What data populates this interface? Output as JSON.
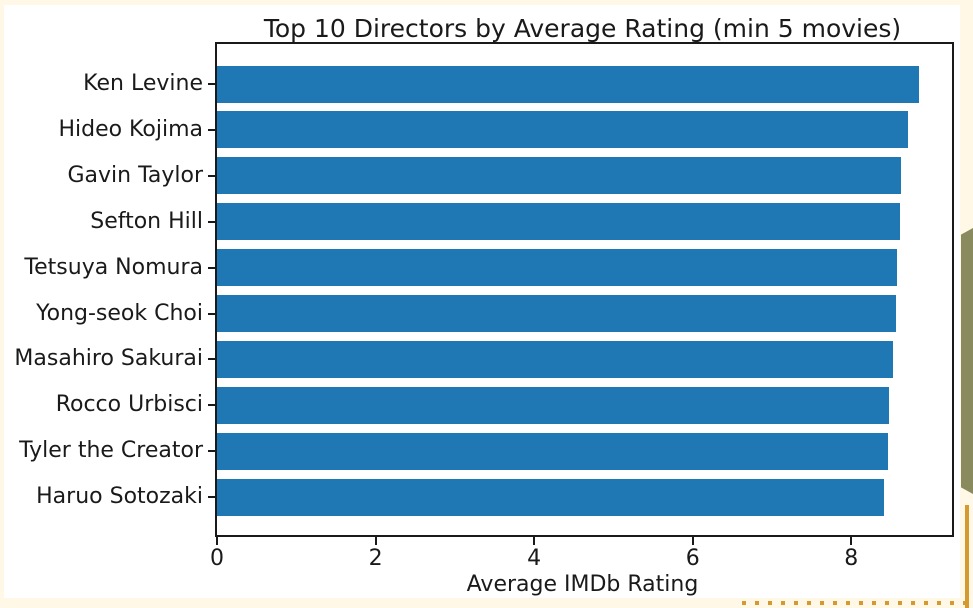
{
  "chart_data": {
    "type": "bar",
    "orientation": "horizontal",
    "title": "Top 10 Directors by Average Rating (min 5 movies)",
    "xlabel": "Average IMDb Rating",
    "ylabel": "",
    "categories": [
      "Ken Levine",
      "Hideo Kojima",
      "Gavin Taylor",
      "Sefton Hill",
      "Tetsuya Nomura",
      "Yong-seok Choi",
      "Masahiro Sakurai",
      "Rocco Urbisci",
      "Tyler the Creator",
      "Haruo Sotozaki"
    ],
    "values": [
      8.85,
      8.72,
      8.63,
      8.61,
      8.58,
      8.56,
      8.53,
      8.47,
      8.46,
      8.41
    ],
    "xlim": [
      0,
      9.27
    ],
    "xticks": [
      0,
      2,
      4,
      6,
      8
    ],
    "grid": false,
    "legend": false,
    "bar_color": "#1F77B4"
  },
  "colors": {
    "page_background": "#FFF8E7",
    "figure_background": "#FFFFFF",
    "axis": "#1A1A1A",
    "text": "#1A1A1A",
    "bar": "#1F77B4",
    "olive_ribbon": "#8A8A5F",
    "orange_accent": "#D6992F"
  }
}
